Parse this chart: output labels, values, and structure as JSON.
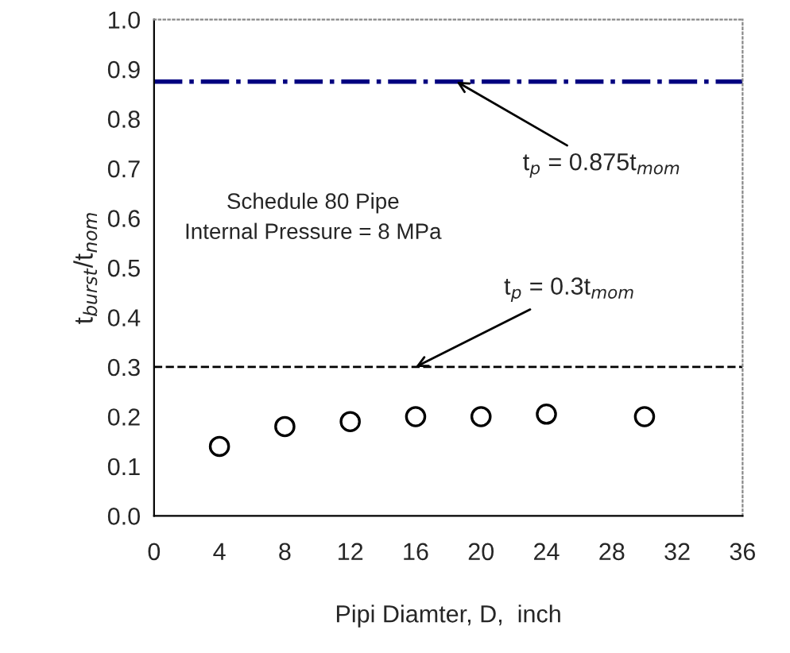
{
  "chart_data": {
    "type": "scatter",
    "xlabel": "Pipi Diamter, D,  inch",
    "ylabel": "t$_{burst}$/t$_{nom}$",
    "x": [
      4,
      8,
      12,
      16,
      20,
      24,
      30
    ],
    "series": [
      {
        "color": "#000000",
        "values": [
          0.14,
          0.18,
          0.19,
          0.2,
          0.2,
          0.205,
          0.2
        ]
      }
    ],
    "marker": "circle",
    "xlim": [
      0,
      36
    ],
    "xticks": [
      0,
      4,
      8,
      12,
      16,
      20,
      24,
      28,
      32,
      36
    ],
    "ylim": [
      0,
      1
    ],
    "yticks": [
      {
        "value": 0,
        "label": "0.0"
      },
      {
        "value": 0.1,
        "label": "0.1"
      },
      {
        "value": 0.2,
        "label": "0.2"
      },
      {
        "value": 0.3,
        "label": "0.3"
      },
      {
        "value": 0.4,
        "label": "0.4"
      },
      {
        "value": 0.5,
        "label": "0.5"
      },
      {
        "value": 0.6,
        "label": "0.6"
      },
      {
        "value": 0.7,
        "label": "0.7"
      },
      {
        "value": 0.8,
        "label": "0.8"
      },
      {
        "value": 0.9,
        "label": "0.9"
      },
      {
        "value": 1,
        "label": "1.0"
      }
    ],
    "ref_lines": [
      {
        "axis": "y",
        "value": 0.875,
        "color": "#000080",
        "line_style": "dashdot"
      },
      {
        "axis": "y",
        "value": 0.3,
        "color": "#000000",
        "line_style": "dashed"
      }
    ],
    "annotations": [
      {
        "text": "t$_{p}$ = 0.875t$_{mom}$",
        "x": 18.5,
        "y": 0.875
      },
      {
        "text": "t$_{p}$ = 0.3t$_{mom}$",
        "x": 16,
        "y": 0.3
      },
      "Schedule 80 Pipe\nInternal Pressure = 8 MPa"
    ],
    "grid": false,
    "legend": false
  }
}
